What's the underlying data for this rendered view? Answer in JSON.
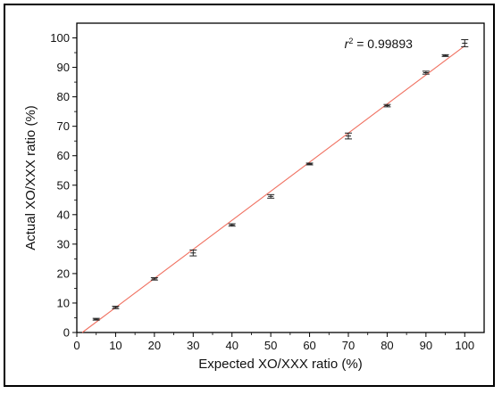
{
  "chart_data": {
    "type": "scatter",
    "title": "",
    "xlabel": "Expected XO/XXX ratio (%)",
    "ylabel": "Actual XO/XXX ratio (%)",
    "xlim": [
      0,
      105
    ],
    "ylim": [
      0,
      105
    ],
    "xticks": [
      0,
      10,
      20,
      30,
      40,
      50,
      60,
      70,
      80,
      90,
      100
    ],
    "yticks": [
      0,
      10,
      20,
      30,
      40,
      50,
      60,
      70,
      80,
      90,
      100
    ],
    "grid": false,
    "points": [
      {
        "x": 5,
        "y": 4.5,
        "err": 0.3
      },
      {
        "x": 10,
        "y": 8.5,
        "err": 0.4
      },
      {
        "x": 20,
        "y": 18.2,
        "err": 0.4
      },
      {
        "x": 30,
        "y": 27.0,
        "err": 1.0
      },
      {
        "x": 40,
        "y": 36.5,
        "err": 0.4
      },
      {
        "x": 50,
        "y": 46.2,
        "err": 0.6
      },
      {
        "x": 60,
        "y": 57.2,
        "err": 0.3
      },
      {
        "x": 70,
        "y": 66.7,
        "err": 1.0
      },
      {
        "x": 80,
        "y": 77.0,
        "err": 0.4
      },
      {
        "x": 90,
        "y": 88.2,
        "err": 0.5
      },
      {
        "x": 95,
        "y": 94.0,
        "err": 0.3
      },
      {
        "x": 100,
        "y": 98.2,
        "err": 1.2
      }
    ],
    "fit_line": {
      "x": [
        1.4,
        100
      ],
      "y": [
        0,
        97.3
      ],
      "color": "#f07060"
    },
    "annotation_prefix": "r",
    "annotation_sup": "2",
    "annotation_value": " = 0.99893"
  }
}
